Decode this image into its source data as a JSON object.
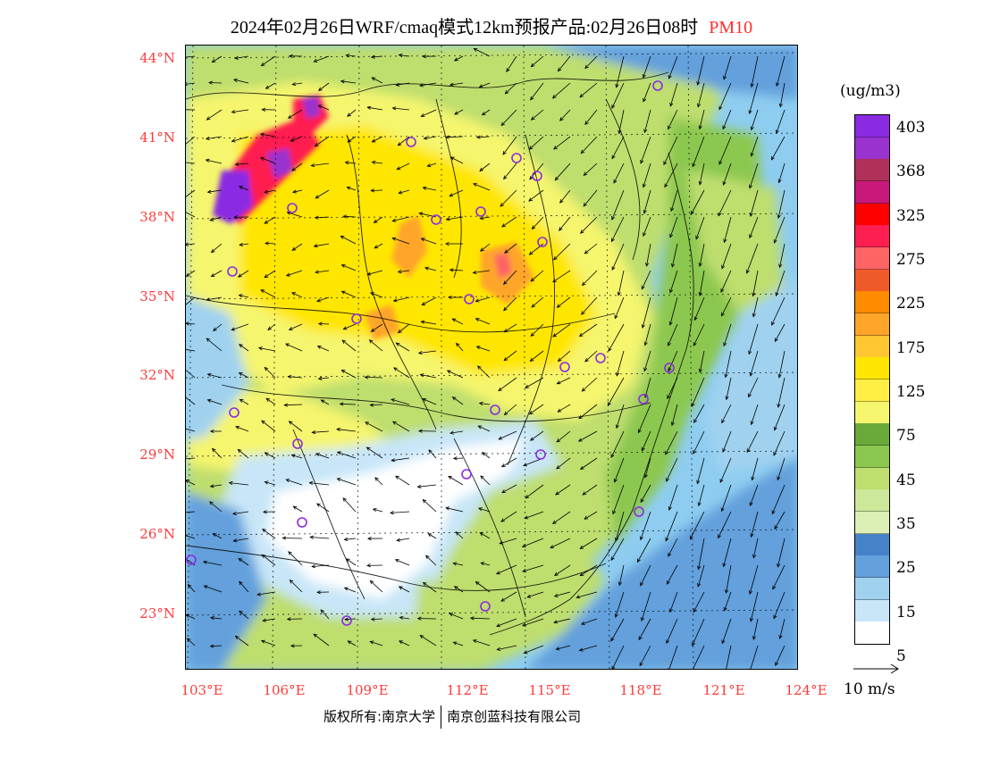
{
  "title": {
    "main": "2024年02月26日WRF/cmaq模式12km预报产品:02月26日08时",
    "pollutant": "PM10"
  },
  "axes": {
    "lat_ticks": [
      "44°N",
      "41°N",
      "38°N",
      "35°N",
      "32°N",
      "29°N",
      "26°N",
      "23°N"
    ],
    "lon_ticks": [
      "103°E",
      "106°E",
      "109°E",
      "112°E",
      "115°E",
      "118°E",
      "121°E",
      "124°E"
    ]
  },
  "legend": {
    "unit": "(ug/m3)",
    "colors": [
      "#8a2be2",
      "#9a32cd",
      "#b0305a",
      "#c8187a",
      "#ff0000",
      "#ff1e50",
      "#ff6464",
      "#f05a28",
      "#ff8c00",
      "#ffa52a",
      "#ffc832",
      "#ffe600",
      "#ffee44",
      "#f5f56e",
      "#6aaa3a",
      "#8cc850",
      "#bede6e",
      "#cce89a",
      "#dcefb4",
      "#4682c8",
      "#64a0dc",
      "#a0d2f0",
      "#c8e6f8",
      "#ffffff"
    ],
    "labels": [
      "403",
      "368",
      "325",
      "275",
      "225",
      "175",
      "125",
      "75",
      "45",
      "35",
      "25",
      "15",
      "5"
    ]
  },
  "vector_reference": {
    "label": "10 m/s"
  },
  "footer": {
    "copyright": "版权所有:南京大学",
    "company": "南京创蓝科技有限公司"
  }
}
